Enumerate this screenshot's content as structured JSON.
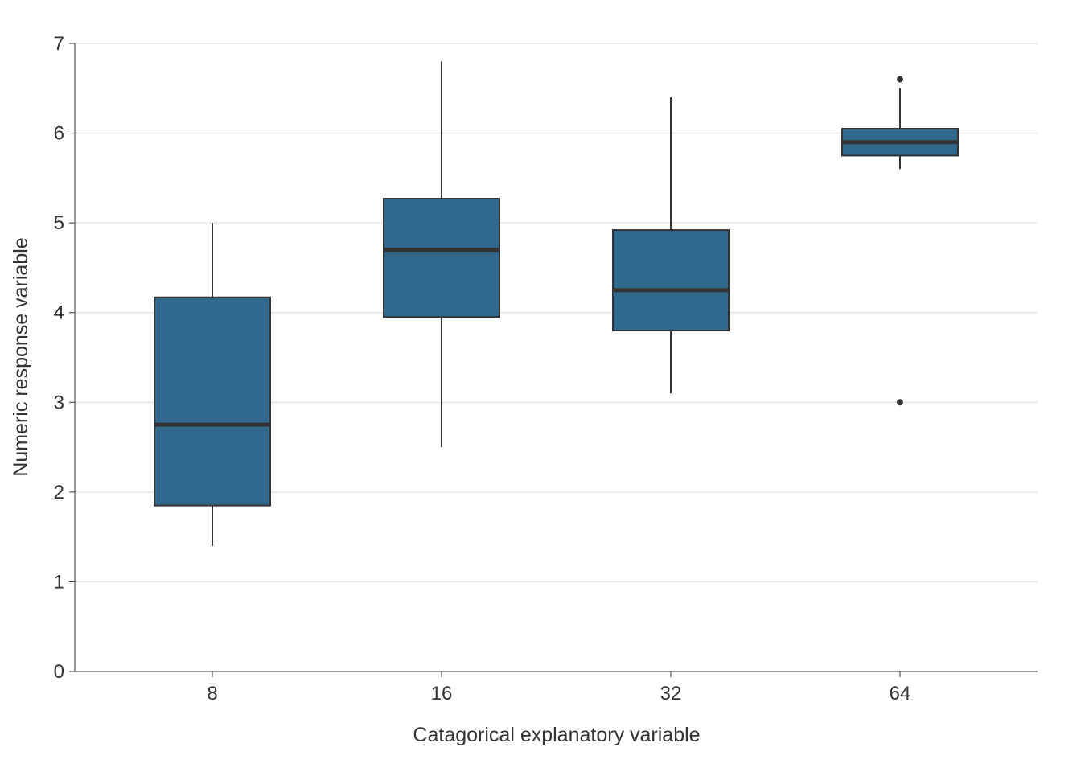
{
  "chart_data": {
    "type": "boxplot",
    "title": "",
    "xlabel": "Catagorical explanatory variable",
    "ylabel": "Numeric response variable",
    "categories": [
      "8",
      "16",
      "32",
      "64"
    ],
    "ylim": [
      0,
      7
    ],
    "yticks": [
      0,
      1,
      2,
      3,
      4,
      5,
      6,
      7
    ],
    "grid": true,
    "box_color": "#31688e",
    "line_color": "#333333",
    "boxes": [
      {
        "category": "8",
        "whisker_low": 1.4,
        "q1": 1.85,
        "median": 2.75,
        "q3": 4.17,
        "whisker_high": 5.0,
        "outliers": []
      },
      {
        "category": "16",
        "whisker_low": 2.5,
        "q1": 3.95,
        "median": 4.7,
        "q3": 5.27,
        "whisker_high": 6.8,
        "outliers": []
      },
      {
        "category": "32",
        "whisker_low": 3.1,
        "q1": 3.8,
        "median": 4.25,
        "q3": 4.92,
        "whisker_high": 6.4,
        "outliers": []
      },
      {
        "category": "64",
        "whisker_low": 5.6,
        "q1": 5.75,
        "median": 5.9,
        "q3": 6.05,
        "whisker_high": 6.5,
        "outliers": [
          6.6,
          3.0
        ]
      }
    ]
  }
}
